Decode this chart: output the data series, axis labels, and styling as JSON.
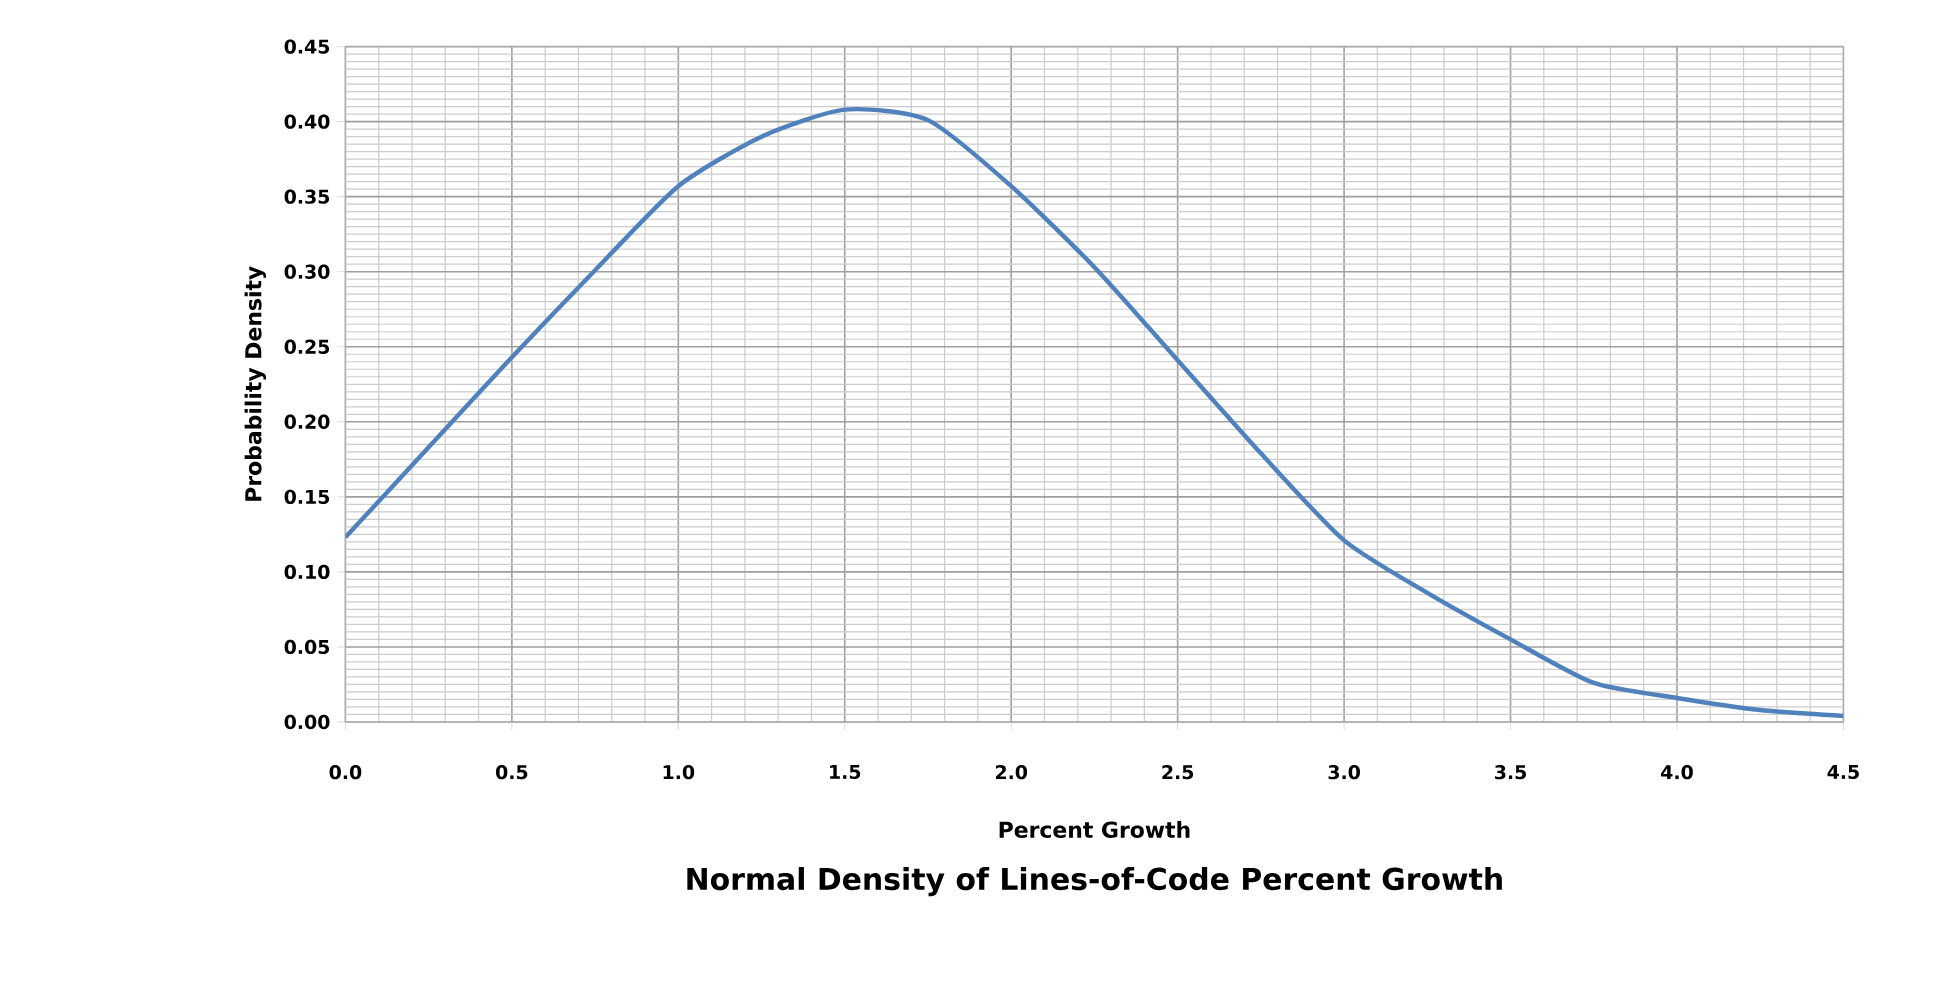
{
  "chart_data": {
    "type": "line",
    "title": "Normal Density of Lines-of-Code  Percent Growth",
    "xlabel": "Percent Growth",
    "ylabel": "Probability Density",
    "x": [
      0,
      0.25,
      0.5,
      0.75,
      1.0,
      1.25,
      1.5,
      1.75,
      2.0,
      2.25,
      2.5,
      2.75,
      3.0,
      3.25,
      3.5,
      3.75,
      4.0,
      4.25,
      4.5
    ],
    "series": [
      {
        "color": "#4f81bd",
        "values": [
          0.123,
          0.183,
          0.243,
          0.301,
          0.357,
          0.39,
          0.408,
          0.401,
          0.357,
          0.303,
          0.241,
          0.179,
          0.121,
          0.086,
          0.055,
          0.026,
          0.016,
          0.008,
          0.004
        ]
      }
    ],
    "xlim": [
      0,
      4.5
    ],
    "xticks": [
      {
        "value": 0,
        "label": "0.0"
      },
      0.5,
      {
        "value": 1,
        "label": "1.0"
      },
      1.5,
      {
        "value": 2,
        "label": "2.0"
      },
      2.5,
      {
        "value": 3,
        "label": "3.0"
      },
      3.5,
      {
        "value": 4,
        "label": "4.0"
      },
      4.5
    ],
    "ylim": [
      0,
      0.45
    ],
    "yticks": [
      {
        "value": 0,
        "label": "0.00"
      },
      0.05,
      {
        "value": 0.1,
        "label": "0.10"
      },
      0.15,
      {
        "value": 0.2,
        "label": "0.20"
      },
      0.25,
      {
        "value": 0.3,
        "label": "0.30"
      },
      0.35,
      {
        "value": 0.4,
        "label": "0.40"
      },
      0.45
    ],
    "grid": true,
    "marker": "none",
    "line_style": "solid"
  }
}
